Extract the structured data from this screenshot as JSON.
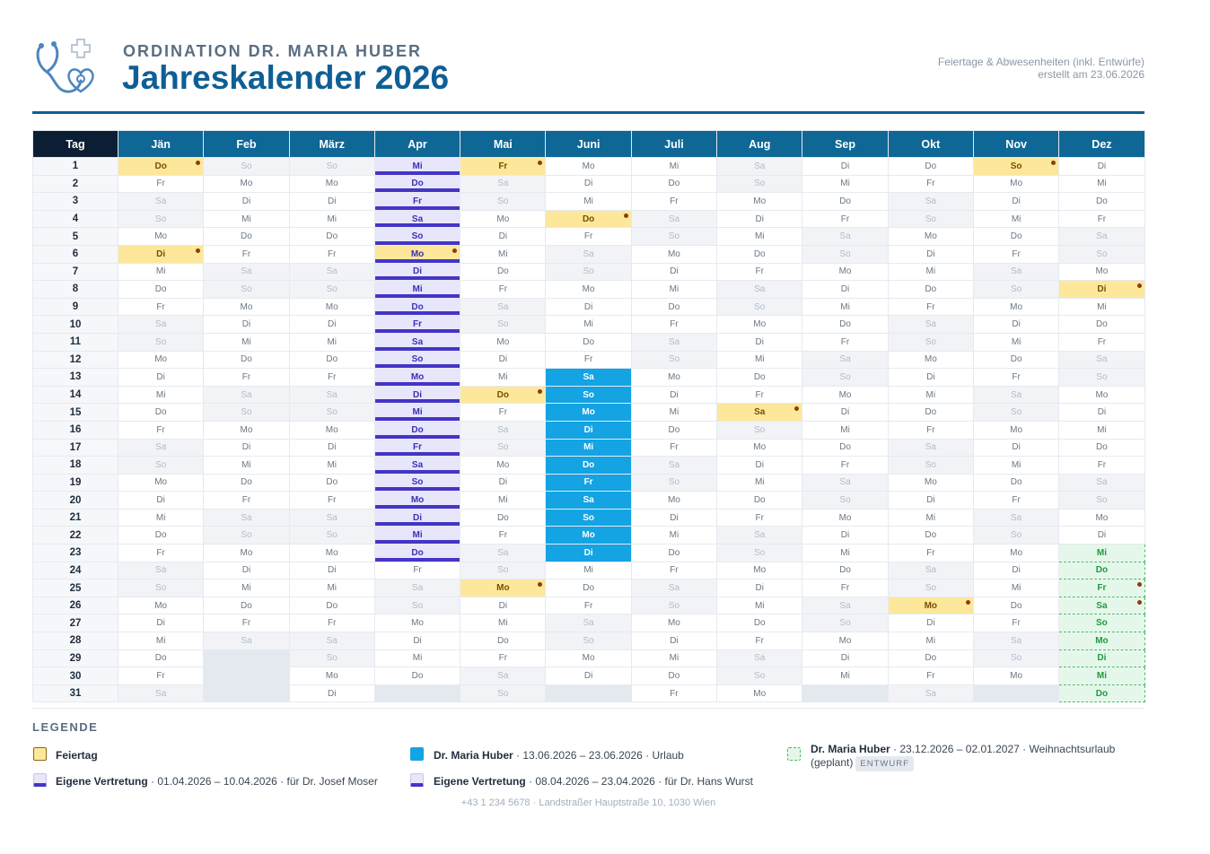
{
  "header": {
    "org": "ORDINATION DR. MARIA HUBER",
    "title": "Jahreskalender 2026",
    "meta_line1": "Feiertage & Abwesenheiten (inkl. Entwürfe)",
    "meta_line2": "erstellt am 23.06.2026"
  },
  "table": {
    "tag_header": "Tag",
    "months": [
      "Jän",
      "Feb",
      "März",
      "Apr",
      "Mai",
      "Juni",
      "Juli",
      "Aug",
      "Sep",
      "Okt",
      "Nov",
      "Dez"
    ],
    "weekday_abbr": [
      "So",
      "Mo",
      "Di",
      "Mi",
      "Do",
      "Fr",
      "Sa"
    ],
    "year": 2026,
    "holidays": [
      "1-1",
      "1-6",
      "4-6",
      "5-1",
      "5-14",
      "5-25",
      "6-4",
      "8-15",
      "10-26",
      "11-1",
      "12-8",
      "12-25",
      "12-26"
    ],
    "ranges": {
      "vertretung": {
        "month": 4,
        "from": 1,
        "to": 23
      },
      "urlaub": {
        "month": 6,
        "from": 13,
        "to": 23
      },
      "entwurf": {
        "month": 12,
        "from": 23,
        "to": 31
      }
    }
  },
  "legend": {
    "title": "LEGENDE",
    "feiertag": "Feiertag",
    "vertretung1_name": "Eigene Vertretung",
    "vertretung1_detail": " · 01.04.2026 – 10.04.2026 · für Dr. Josef Moser",
    "urlaub_name": "Dr. Maria Huber",
    "urlaub_detail": " · 13.06.2026 – 23.06.2026 · Urlaub",
    "vertretung2_name": "Eigene Vertretung",
    "vertretung2_detail": " · 08.04.2026 – 23.04.2026 · für Dr. Hans Wurst",
    "draft_name": "Dr. Maria Huber",
    "draft_detail": " · 23.12.2026 – 02.01.2027 · Weihnachtsurlaub (geplant)",
    "draft_badge": "ENTWURF"
  },
  "footer": "+43 1 234 5678   ·   Landstraßer Hauptstraße 10, 1030 Wien",
  "colors": {
    "brand": "#0f5f94",
    "holiday": "#fde79a",
    "vacation": "#14a3e3",
    "vertretung": "#4335c6",
    "draft": "#4cb86b"
  }
}
